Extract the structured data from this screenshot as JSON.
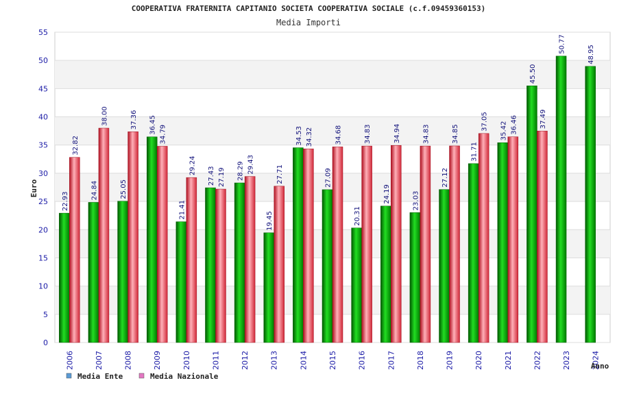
{
  "chart_data": {
    "type": "bar",
    "title": "COOPERATIVA FRATERNITA CAPITANIO SOCIETA COOPERATIVA SOCIALE (c.f.09459360153)",
    "subtitle": "Media Importi",
    "xlabel": "Anno",
    "ylabel": "Euro",
    "ylim": [
      0,
      55
    ],
    "yticks": [
      0,
      5,
      10,
      15,
      20,
      25,
      30,
      35,
      40,
      45,
      50,
      55
    ],
    "grid": "horizontal",
    "legend_position": "bottom-left",
    "categories": [
      "2006",
      "2007",
      "2008",
      "2009",
      "2010",
      "2011",
      "2012",
      "2013",
      "2014",
      "2015",
      "2016",
      "2017",
      "2018",
      "2019",
      "2020",
      "2021",
      "2022",
      "2023",
      "2024"
    ],
    "series": [
      {
        "name": "Media Ente",
        "color": "#00aa00",
        "legend_color": "#5b9bd5",
        "values": [
          22.93,
          24.84,
          25.05,
          36.45,
          21.41,
          27.43,
          28.29,
          19.45,
          34.53,
          27.09,
          20.31,
          24.19,
          23.03,
          27.12,
          31.71,
          35.42,
          45.5,
          50.77,
          48.95
        ],
        "labels": [
          "22.93",
          "24.84",
          "25.05",
          "36.45",
          "21.41",
          "27.43",
          "28.29",
          "19.45",
          "34.53",
          "27.09",
          "20.31",
          "24.19",
          "23.03",
          "27.12",
          "31.71",
          "35.42",
          "45.50",
          "50.77",
          "48.95"
        ]
      },
      {
        "name": "Media Nazionale",
        "color": "#e83a4a",
        "legend_color": "#e377c2",
        "values": [
          32.82,
          38.0,
          37.36,
          34.79,
          29.24,
          27.19,
          29.43,
          27.71,
          34.32,
          34.68,
          34.83,
          34.94,
          34.83,
          34.85,
          37.05,
          36.46,
          37.49,
          null,
          null
        ],
        "labels": [
          "32.82",
          "38.00",
          "37.36",
          "34.79",
          "29.24",
          "27.19",
          "29.43",
          "27.71",
          "34.32",
          "34.68",
          "34.83",
          "34.94",
          "34.83",
          "34.85",
          "37.05",
          "36.46",
          "37.49",
          null,
          null
        ]
      }
    ]
  }
}
